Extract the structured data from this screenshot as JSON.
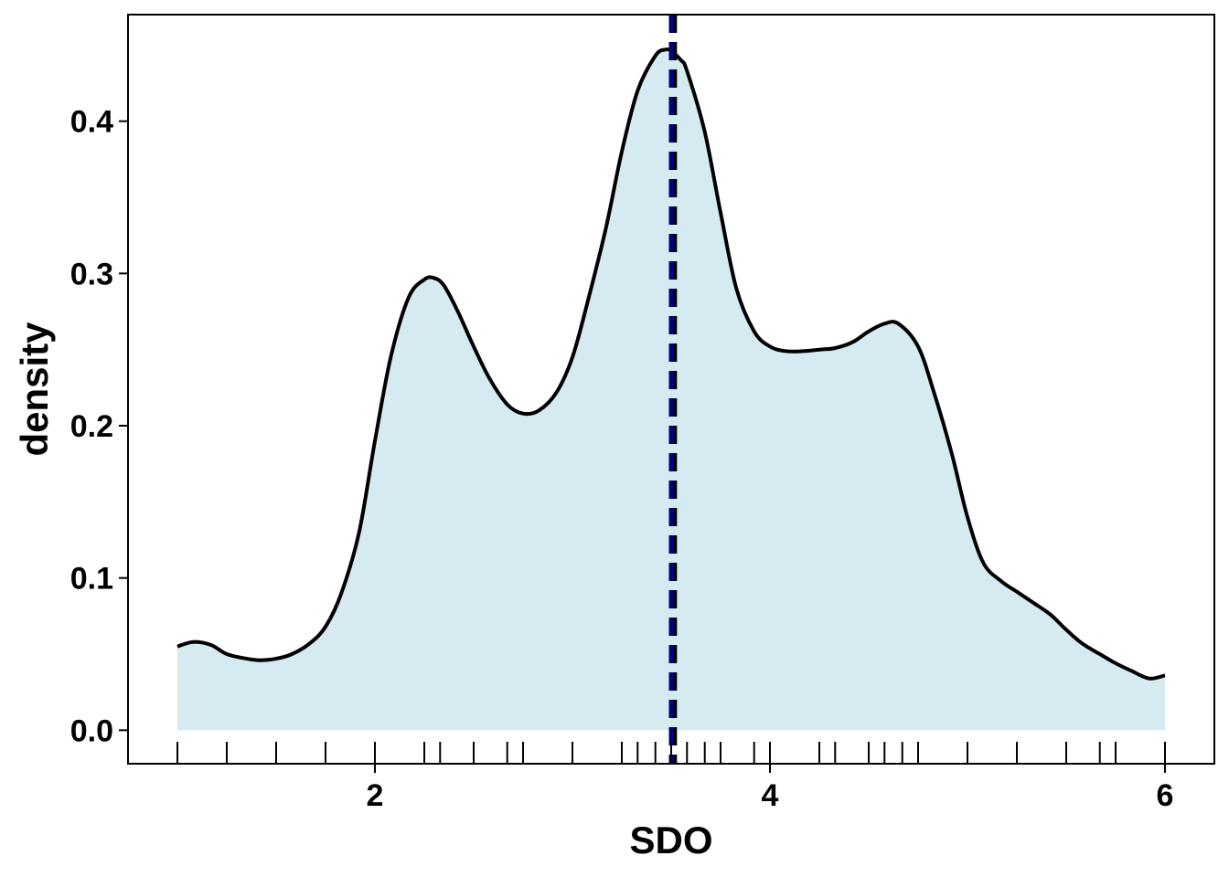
{
  "chart_data": {
    "type": "area",
    "xlabel": "SDO",
    "ylabel": "density",
    "xlim": [
      0.75,
      6.25
    ],
    "ylim": [
      -0.022,
      0.47
    ],
    "x_ticks": [
      2,
      4,
      6
    ],
    "y_ticks": [
      0.0,
      0.1,
      0.2,
      0.3,
      0.4
    ],
    "x_tick_labels": [
      "2",
      "4",
      "6"
    ],
    "y_tick_labels": [
      "0.0",
      "0.1",
      "0.2",
      "0.3",
      "0.4"
    ],
    "grid": false,
    "colors": {
      "fill": "#d6eaf1",
      "line": "#000000",
      "mean_line": "#000080",
      "median_line": "#000000"
    },
    "density": {
      "x": [
        1.0,
        1.08,
        1.17,
        1.25,
        1.35,
        1.42,
        1.5,
        1.58,
        1.67,
        1.75,
        1.83,
        1.92,
        2.0,
        2.08,
        2.17,
        2.25,
        2.3,
        2.35,
        2.42,
        2.5,
        2.58,
        2.67,
        2.75,
        2.83,
        2.92,
        3.0,
        3.08,
        3.17,
        3.25,
        3.33,
        3.42,
        3.47,
        3.5,
        3.55,
        3.58,
        3.67,
        3.75,
        3.83,
        3.92,
        4.0,
        4.08,
        4.17,
        4.25,
        4.33,
        4.42,
        4.5,
        4.58,
        4.65,
        4.75,
        4.83,
        4.92,
        5.0,
        5.08,
        5.17,
        5.25,
        5.33,
        5.42,
        5.5,
        5.58,
        5.67,
        5.75,
        5.83,
        5.92,
        6.0
      ],
      "y": [
        0.055,
        0.058,
        0.056,
        0.05,
        0.047,
        0.046,
        0.047,
        0.05,
        0.057,
        0.068,
        0.09,
        0.13,
        0.19,
        0.245,
        0.284,
        0.296,
        0.297,
        0.292,
        0.275,
        0.252,
        0.231,
        0.214,
        0.208,
        0.21,
        0.222,
        0.245,
        0.283,
        0.33,
        0.38,
        0.42,
        0.443,
        0.447,
        0.446,
        0.44,
        0.433,
        0.393,
        0.34,
        0.29,
        0.262,
        0.252,
        0.249,
        0.249,
        0.25,
        0.251,
        0.255,
        0.262,
        0.267,
        0.267,
        0.252,
        0.222,
        0.182,
        0.14,
        0.11,
        0.098,
        0.091,
        0.084,
        0.076,
        0.066,
        0.057,
        0.05,
        0.044,
        0.039,
        0.034,
        0.036
      ]
    },
    "rug": [
      1.0,
      1.25,
      1.5,
      1.75,
      2.0,
      2.25,
      2.33,
      2.5,
      2.67,
      2.75,
      3.0,
      3.25,
      3.33,
      3.42,
      3.5,
      3.58,
      3.67,
      3.75,
      3.92,
      4.0,
      4.25,
      4.33,
      4.5,
      4.58,
      4.67,
      4.75,
      5.0,
      5.25,
      5.5,
      5.67,
      5.75,
      6.0
    ],
    "mean": 3.5,
    "median": 3.52
  }
}
